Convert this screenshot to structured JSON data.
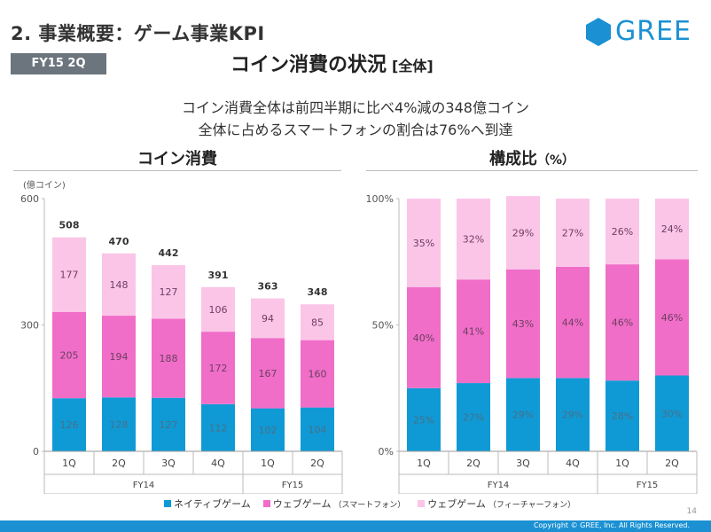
{
  "header": {
    "section_title": "2. 事業概要：ゲーム事業KPI",
    "logo_text": "GREE",
    "badge": "FY15 2Q",
    "main_title": "コイン消費の状況",
    "main_title_suffix": "[全体]"
  },
  "summary": {
    "line1": "コイン消費全体は前四半期に比べ4%減の348億コイン",
    "line2": "全体に占めるスマートフォンの割合は76%へ到達"
  },
  "colors": {
    "native": "#0f9ad6",
    "web_sp": "#f06ec8",
    "web_fp": "#fbc5e8",
    "brand": "#1b91d3"
  },
  "legend": [
    {
      "label": "ネイティブゲーム",
      "note": ""
    },
    {
      "label": "ウェブゲーム",
      "note": "（スマートフォン）"
    },
    {
      "label": "ウェブゲーム",
      "note": "（フィーチャーフォン）"
    }
  ],
  "page_number": "14",
  "footer": "Copyright © GREE, Inc. All Rights Reserved.",
  "chart_data": [
    {
      "type": "bar",
      "stacked": true,
      "title": "コイン消費",
      "unit_label": "(億コイン)",
      "categories": [
        "1Q",
        "2Q",
        "3Q",
        "4Q",
        "1Q",
        "2Q"
      ],
      "groups": [
        {
          "label": "FY14",
          "count": 4
        },
        {
          "label": "FY15",
          "count": 2
        }
      ],
      "series": [
        {
          "name": "ネイティブゲーム",
          "values": [
            126,
            128,
            127,
            112,
            102,
            104
          ]
        },
        {
          "name": "ウェブゲーム（スマートフォン）",
          "values": [
            205,
            194,
            188,
            172,
            167,
            160
          ]
        },
        {
          "name": "ウェブゲーム（フィーチャーフォン）",
          "values": [
            177,
            148,
            127,
            106,
            94,
            85
          ]
        }
      ],
      "totals": [
        508,
        470,
        442,
        391,
        363,
        348
      ],
      "ylim": [
        0,
        600
      ],
      "yticks": [
        0,
        300,
        600
      ],
      "ytick_labels": [
        "0",
        "300",
        "600"
      ]
    },
    {
      "type": "bar",
      "stacked": true,
      "title": "構成比",
      "title_suffix": "（%）",
      "categories": [
        "1Q",
        "2Q",
        "3Q",
        "4Q",
        "1Q",
        "2Q"
      ],
      "groups": [
        {
          "label": "FY14",
          "count": 4
        },
        {
          "label": "FY15",
          "count": 2
        }
      ],
      "series": [
        {
          "name": "ネイティブゲーム",
          "values": [
            25,
            27,
            29,
            29,
            28,
            30
          ],
          "labels": [
            "25%",
            "27%",
            "29%",
            "29%",
            "28%",
            "30%"
          ]
        },
        {
          "name": "ウェブゲーム（スマートフォン）",
          "values": [
            40,
            41,
            43,
            44,
            46,
            46
          ],
          "labels": [
            "40%",
            "41%",
            "43%",
            "44%",
            "46%",
            "46%"
          ]
        },
        {
          "name": "ウェブゲーム（フィーチャーフォン）",
          "values": [
            35,
            32,
            29,
            27,
            26,
            24
          ],
          "labels": [
            "35%",
            "32%",
            "29%",
            "27%",
            "26%",
            "24%"
          ]
        }
      ],
      "ylim": [
        0,
        100
      ],
      "yticks": [
        0,
        50,
        100
      ],
      "ytick_labels": [
        "0%",
        "50%",
        "100%"
      ]
    }
  ]
}
